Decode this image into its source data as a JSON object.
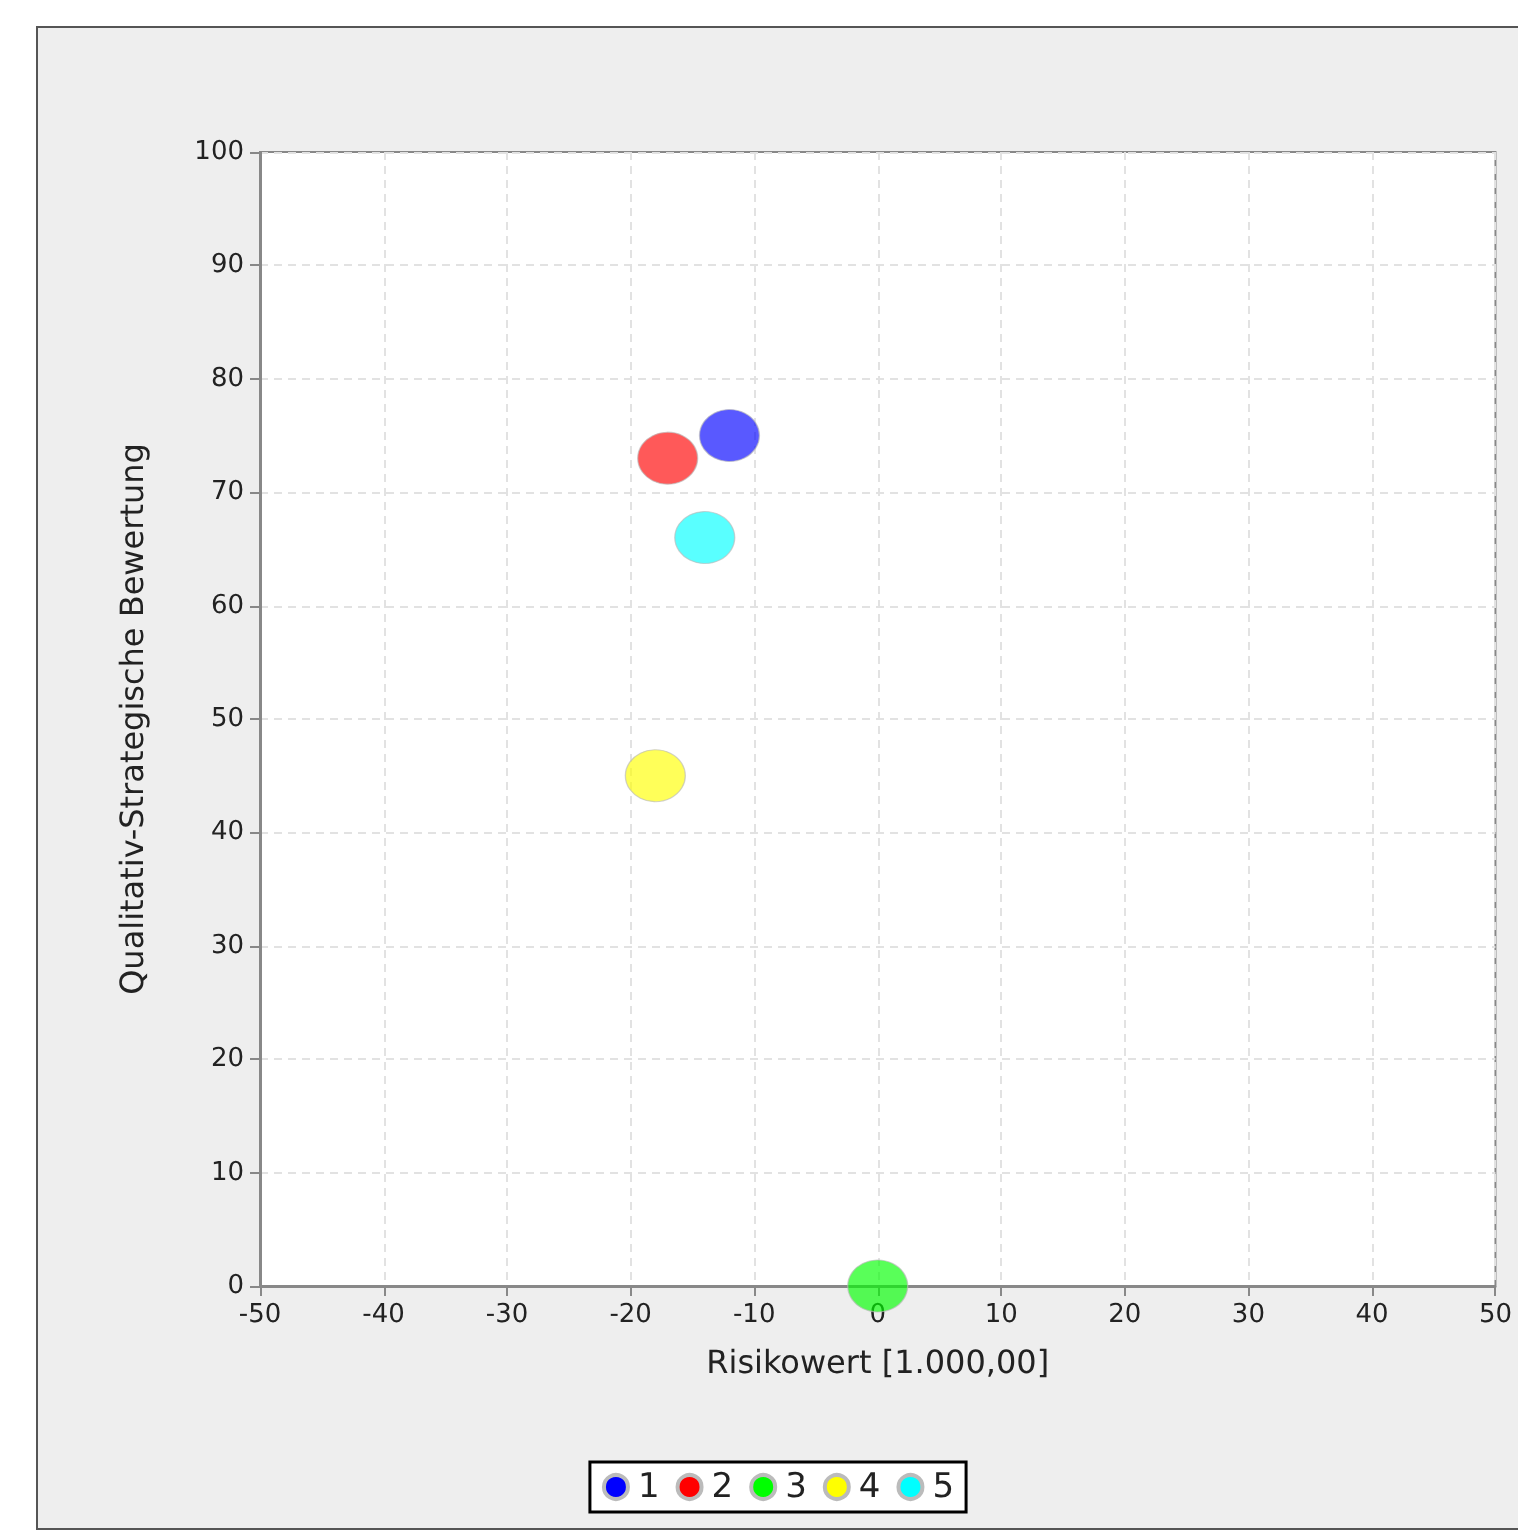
{
  "chart_data": {
    "type": "scatter",
    "xlabel": "Risikowert [1.000,00]",
    "ylabel": "Qualitativ-Strategische Bewertung",
    "xlim": [
      -50,
      50
    ],
    "xticks": [
      -50,
      -40,
      -30,
      -20,
      -10,
      0,
      10,
      20,
      30,
      40,
      50
    ],
    "ylim": [
      0,
      100
    ],
    "yticks": [
      0,
      10,
      20,
      30,
      40,
      50,
      60,
      70,
      80,
      90,
      100
    ],
    "grid": true,
    "legend": "bottom",
    "marker": "circle",
    "series": [
      {
        "name": "1",
        "color": "#0000ff",
        "x": [
          -12
        ],
        "values": [
          75
        ]
      },
      {
        "name": "2",
        "color": "#ff0000",
        "x": [
          -17
        ],
        "values": [
          73
        ]
      },
      {
        "name": "3",
        "color": "#00ff00",
        "x": [
          0
        ],
        "values": [
          0
        ]
      },
      {
        "name": "4",
        "color": "#ffff00",
        "x": [
          -18
        ],
        "values": [
          45
        ]
      },
      {
        "name": "5",
        "color": "#00ffff",
        "x": [
          -14
        ],
        "values": [
          66
        ]
      }
    ]
  }
}
